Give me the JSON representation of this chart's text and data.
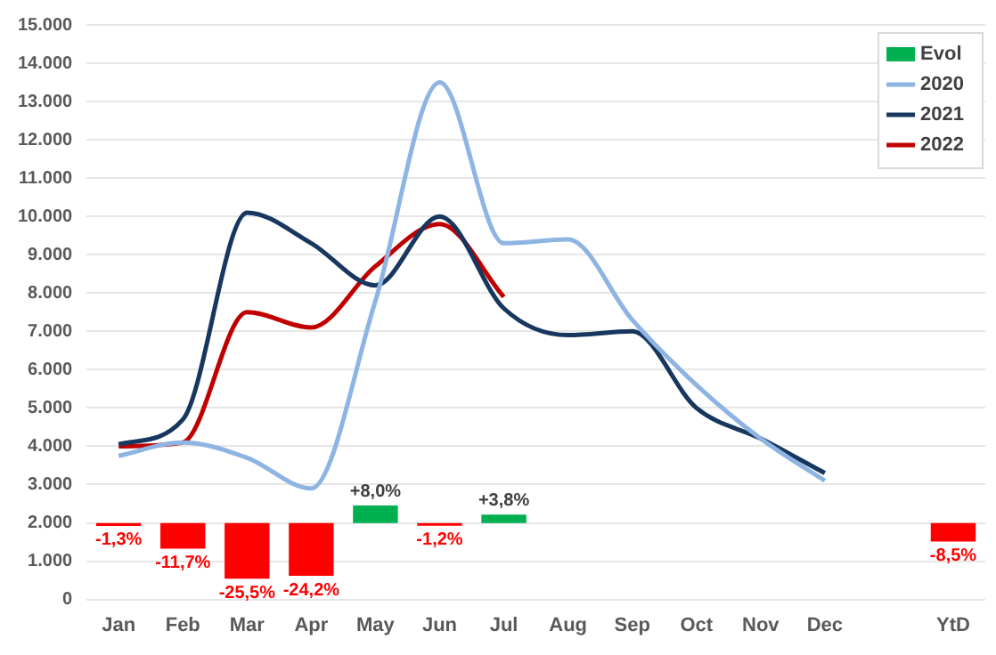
{
  "chart_data": {
    "type": "line",
    "categories": [
      "Jan",
      "Feb",
      "Mar",
      "Apr",
      "May",
      "Jun",
      "Jul",
      "Aug",
      "Sep",
      "Oct",
      "Nov",
      "Dec",
      null,
      "YtD"
    ],
    "series": [
      {
        "name": "Evol",
        "type": "bar",
        "axis": "y2",
        "color": "#00b050",
        "colors": [
          "#ff0000",
          "#ff0000",
          "#ff0000",
          "#ff0000",
          "#00b050",
          "#ff0000",
          "#00b050",
          null,
          null,
          null,
          null,
          null,
          null,
          "#ff0000"
        ],
        "values": [
          -1.3,
          -11.7,
          -25.5,
          -24.2,
          8.0,
          -1.2,
          3.8,
          null,
          null,
          null,
          null,
          null,
          null,
          -8.5
        ],
        "value_labels": [
          "-1,3%",
          "-11,7%",
          "-25,5%",
          "-24,2%",
          "+8,0%",
          "-1,2%",
          "+3,8%",
          null,
          null,
          null,
          null,
          null,
          null,
          "-8,5%"
        ]
      },
      {
        "name": "2020",
        "color": "#8eb4e3",
        "values": [
          3750,
          4100,
          3700,
          2900,
          7800,
          13500,
          9300,
          9400,
          7300,
          5600,
          4200,
          3100,
          null,
          null
        ]
      },
      {
        "name": "2021",
        "color": "#17375e",
        "values": [
          4050,
          4700,
          10100,
          9300,
          8200,
          10000,
          7600,
          6900,
          7000,
          5000,
          4200,
          3300,
          null,
          null
        ]
      },
      {
        "name": "2022",
        "color": "#c00000",
        "values": [
          4000,
          4100,
          7500,
          7100,
          8700,
          9800,
          7900,
          null,
          null,
          null,
          null,
          null,
          null,
          null
        ]
      }
    ],
    "ylim": [
      0,
      15000
    ],
    "y2lim": [
      -35,
      228
    ],
    "yticks": [
      {
        "value": 0,
        "label": "0"
      },
      {
        "value": 1000,
        "label": "1.000"
      },
      {
        "value": 2000,
        "label": "2.000"
      },
      {
        "value": 3000,
        "label": "3.000"
      },
      {
        "value": 4000,
        "label": "4.000"
      },
      {
        "value": 5000,
        "label": "5.000"
      },
      {
        "value": 6000,
        "label": "6.000"
      },
      {
        "value": 7000,
        "label": "7.000"
      },
      {
        "value": 8000,
        "label": "8.000"
      },
      {
        "value": 9000,
        "label": "9.000"
      },
      {
        "value": 10000,
        "label": "10.000"
      },
      {
        "value": 11000,
        "label": "11.000"
      },
      {
        "value": 12000,
        "label": "12.000"
      },
      {
        "value": 13000,
        "label": "13.000"
      },
      {
        "value": 14000,
        "label": "14.000"
      },
      {
        "value": 15000,
        "label": "15.000"
      }
    ],
    "grid": "y",
    "legend": "top right",
    "marker": "none",
    "line_style": "solid"
  }
}
